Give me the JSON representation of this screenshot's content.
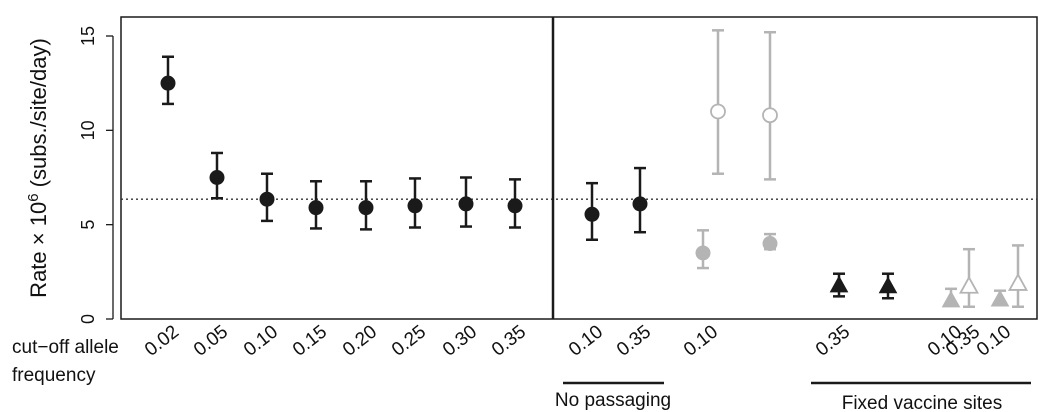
{
  "chart_data": {
    "type": "scatter",
    "ylabel": "Rate × 10",
    "ylabel_exponent": "6",
    "ylabel_unit": " (subs./site/day)",
    "ylim": [
      0,
      16
    ],
    "yticks": [
      "0",
      "5",
      "10",
      "15"
    ],
    "reference_line": 6.35,
    "x_axis_title_lines": [
      "cut−off allele",
      "frequency"
    ],
    "colors": {
      "black": "#1a1a1a",
      "grey": "#b4b4b4"
    },
    "points": [
      {
        "x": "0.02",
        "y": 12.5,
        "lo": 11.4,
        "hi": 13.9,
        "marker": "circle",
        "color": "black",
        "filled": true
      },
      {
        "x": "0.05",
        "y": 7.5,
        "lo": 6.4,
        "hi": 8.8,
        "marker": "circle",
        "color": "black",
        "filled": true
      },
      {
        "x": "0.10",
        "y": 6.35,
        "lo": 5.2,
        "hi": 7.7,
        "marker": "circle",
        "color": "black",
        "filled": true
      },
      {
        "x": "0.15",
        "y": 5.9,
        "lo": 4.8,
        "hi": 7.3,
        "marker": "circle",
        "color": "black",
        "filled": true
      },
      {
        "x": "0.20",
        "y": 5.9,
        "lo": 4.75,
        "hi": 7.3,
        "marker": "circle",
        "color": "black",
        "filled": true
      },
      {
        "x": "0.25",
        "y": 6.0,
        "lo": 4.85,
        "hi": 7.45,
        "marker": "circle",
        "color": "black",
        "filled": true
      },
      {
        "x": "0.30",
        "y": 6.1,
        "lo": 4.9,
        "hi": 7.5,
        "marker": "circle",
        "color": "black",
        "filled": true
      },
      {
        "x": "0.35",
        "y": 6.0,
        "lo": 4.85,
        "hi": 7.4,
        "marker": "circle",
        "color": "black",
        "filled": true
      },
      {
        "x": "0.10",
        "y": 5.55,
        "lo": 4.2,
        "hi": 7.2,
        "marker": "circle",
        "color": "black",
        "filled": true
      },
      {
        "x": "0.35",
        "y": 6.1,
        "lo": 4.6,
        "hi": 8.0,
        "marker": "circle",
        "color": "black",
        "filled": true
      },
      {
        "x": "0.10",
        "y": 3.5,
        "lo": 2.7,
        "hi": 4.7,
        "marker": "circle",
        "color": "grey",
        "filled": true
      },
      {
        "x": "0.10",
        "y": 11.0,
        "lo": 7.7,
        "hi": 15.3,
        "marker": "circle",
        "color": "grey",
        "filled": false
      },
      {
        "x": "0.35",
        "y": 4.0,
        "lo": 3.7,
        "hi": 4.5,
        "marker": "circle",
        "color": "grey",
        "filled": true
      },
      {
        "x": "0.35",
        "y": 10.8,
        "lo": 7.4,
        "hi": 15.2,
        "marker": "circle",
        "color": "grey",
        "filled": false
      },
      {
        "x": "0.10",
        "y": 1.8,
        "lo": 1.2,
        "hi": 2.4,
        "marker": "triangle",
        "color": "black",
        "filled": true
      },
      {
        "x": "0.35",
        "y": 1.75,
        "lo": 1.1,
        "hi": 2.4,
        "marker": "triangle",
        "color": "black",
        "filled": true
      },
      {
        "x": "0.10",
        "y": 1.0,
        "lo": 0.7,
        "hi": 1.6,
        "marker": "triangle",
        "color": "grey",
        "filled": true
      },
      {
        "x": "0.10",
        "y": 1.75,
        "lo": 0.65,
        "hi": 3.7,
        "marker": "triangle",
        "color": "grey",
        "filled": false
      },
      {
        "x": "0.35",
        "y": 1.05,
        "lo": 0.75,
        "hi": 1.5,
        "marker": "triangle",
        "color": "grey",
        "filled": true
      },
      {
        "x": "0.35",
        "y": 1.9,
        "lo": 0.65,
        "hi": 3.9,
        "marker": "triangle",
        "color": "grey",
        "filled": false
      }
    ],
    "tick_labels": [
      "0.02",
      "0.05",
      "0.10",
      "0.15",
      "0.20",
      "0.25",
      "0.30",
      "0.35",
      "0.10",
      "0.35",
      "0.10",
      "0.35",
      "0.10",
      "0.35",
      "0.10",
      "0.35"
    ],
    "group_labels": [
      "No passaging",
      "Fixed vaccine sites"
    ]
  }
}
